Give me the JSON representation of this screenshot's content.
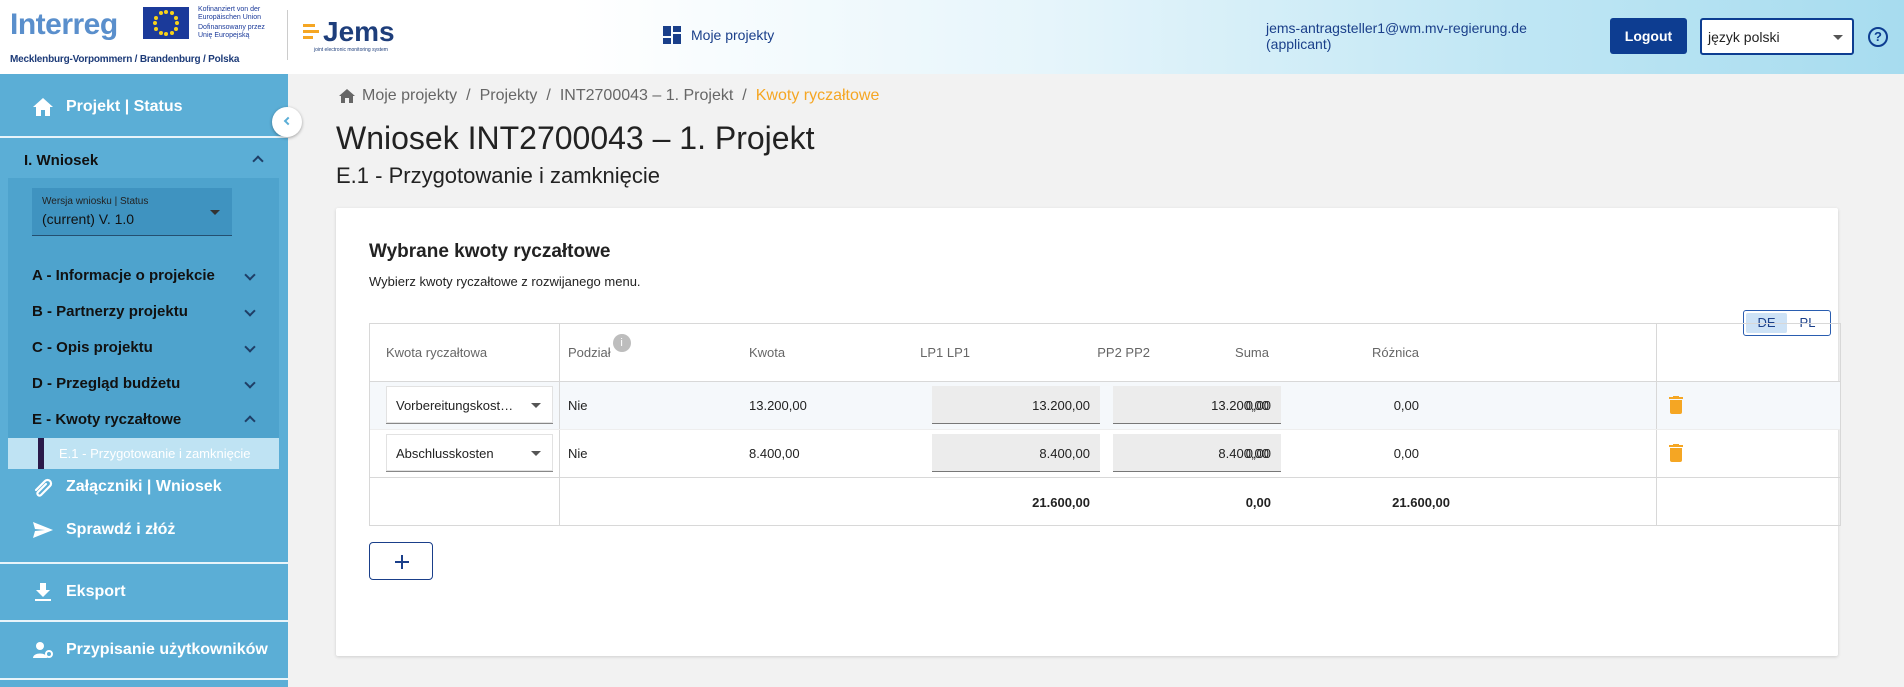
{
  "header": {
    "logo_text": "Interreg",
    "region_text": "Mecklenburg-Vorpommern / Brandenburg / Polska",
    "eu_text": [
      "Kofinanziert von der",
      "Europäischen Union",
      "Dofinansowany przez",
      "Unię Europejską"
    ],
    "jems_text": "Jems",
    "jems_sub": "joint electronic monitoring system",
    "nav_projects": "Moje projekty",
    "user_email": "jems-antragsteller1@wm.mv-regierung.de",
    "user_role": "(applicant)",
    "logout_label": "Logout",
    "language": "język polski",
    "help": "?"
  },
  "sidebar": {
    "project_status": "Projekt | Status",
    "wniosek": "I. Wniosek",
    "version_label": "Wersja wniosku | Status",
    "version_value": "(current) V. 1.0",
    "sections": [
      {
        "label": "A - Informacje o projekcie"
      },
      {
        "label": "B - Partnerzy projektu"
      },
      {
        "label": "C - Opis projektu"
      },
      {
        "label": "D - Przegląd budżetu"
      },
      {
        "label": "E - Kwoty ryczałtowe"
      }
    ],
    "active_item": "E.1 - Przygotowanie i zamknięcie",
    "attachments": "Załączniki | Wniosek",
    "check_submit": "Sprawdź i złóż",
    "export": "Eksport",
    "user_assignment": "Przypisanie użytkowników"
  },
  "breadcrumb": {
    "items": [
      "Moje projekty",
      "Projekty",
      "INT2700043 – 1. Projekt"
    ],
    "current": "Kwoty ryczałtowe"
  },
  "page": {
    "title": "Wniosek INT2700043 – 1. Projekt",
    "subtitle": "E.1 - Przygotowanie i zamknięcie"
  },
  "card": {
    "title": "Wybrane kwoty ryczałtowe",
    "description": "Wybierz kwoty ryczałtowe z rozwijanego menu.",
    "lang_toggle": [
      "DE",
      "PL"
    ],
    "columns": [
      "Kwota ryczałtowa",
      "Podział",
      "Kwota",
      "LP1 LP1",
      "PP2 PP2",
      "Suma",
      "Różnica"
    ],
    "rows": [
      {
        "lump_sum": "Vorbereitungskost…",
        "split": "Nie",
        "amount": "13.200,00",
        "lp1": "13.200,00",
        "pp2": "0,00",
        "sum": "13.200,00",
        "diff": "0,00"
      },
      {
        "lump_sum": "Abschlusskosten",
        "split": "Nie",
        "amount": "8.400,00",
        "lp1": "8.400,00",
        "pp2": "0,00",
        "sum": "8.400,00",
        "diff": "0,00"
      }
    ],
    "totals": {
      "lp1": "21.600,00",
      "pp2": "0,00",
      "sum": "21.600,00"
    }
  },
  "colors": {
    "sidebar": "#5baed6",
    "primary": "#0d3d91",
    "accent": "#f5a623"
  },
  "icons": [
    "home-icon",
    "dashboard-icon",
    "help-icon",
    "paperclip-icon",
    "send-icon",
    "download-icon",
    "user-settings-icon",
    "trash-icon",
    "plus-icon",
    "info-icon"
  ]
}
